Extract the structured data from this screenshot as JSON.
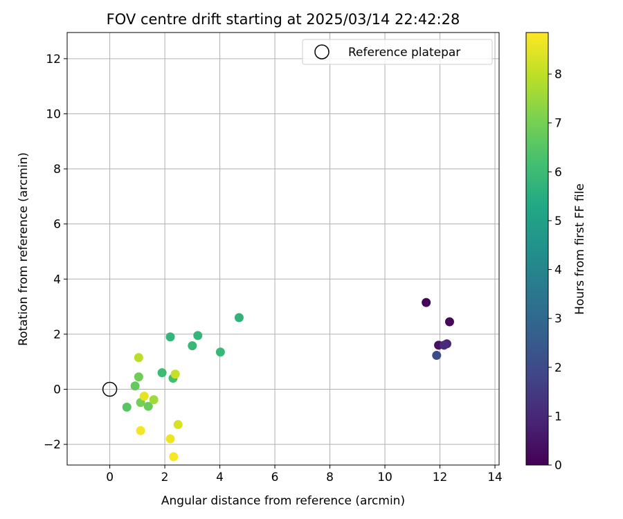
{
  "chart_data": {
    "type": "scatter",
    "title": "FOV centre drift starting at 2025/03/14 22:42:28",
    "xlabel": "Angular distance from reference (arcmin)",
    "ylabel": "Rotation from reference (arcmin)",
    "xlim": [
      -1.55,
      14.15
    ],
    "ylim": [
      -2.75,
      12.95
    ],
    "xticks": [
      0,
      2,
      4,
      6,
      8,
      10,
      12,
      14
    ],
    "yticks": [
      -2,
      0,
      2,
      4,
      6,
      8,
      10,
      12
    ],
    "grid": true,
    "legend": {
      "placement": "top-right",
      "entries": [
        "Reference platepar"
      ]
    },
    "colorbar": {
      "label": "Hours from first FF file",
      "range": [
        0,
        8.85
      ],
      "ticks": [
        0,
        1,
        2,
        3,
        4,
        5,
        6,
        7,
        8
      ],
      "colormap": "viridis"
    },
    "reference_point": {
      "x": 0,
      "y": 0,
      "label": "Reference platepar"
    },
    "points": [
      {
        "x": 11.5,
        "y": 3.15,
        "hours": 0.1
      },
      {
        "x": 12.35,
        "y": 2.45,
        "hours": 0.2
      },
      {
        "x": 11.95,
        "y": 1.6,
        "hours": 0.4
      },
      {
        "x": 12.25,
        "y": 1.65,
        "hours": 0.9
      },
      {
        "x": 12.15,
        "y": 1.6,
        "hours": 1.1
      },
      {
        "x": 11.88,
        "y": 1.23,
        "hours": 2.0
      },
      {
        "x": 4.7,
        "y": 2.6,
        "hours": 5.7
      },
      {
        "x": 3.2,
        "y": 1.95,
        "hours": 5.8
      },
      {
        "x": 2.2,
        "y": 1.9,
        "hours": 5.8
      },
      {
        "x": 3.0,
        "y": 1.58,
        "hours": 5.9
      },
      {
        "x": 4.02,
        "y": 1.35,
        "hours": 5.9
      },
      {
        "x": 1.9,
        "y": 0.6,
        "hours": 6.0
      },
      {
        "x": 2.3,
        "y": 0.4,
        "hours": 6.2
      },
      {
        "x": 0.62,
        "y": -0.65,
        "hours": 6.5
      },
      {
        "x": 0.92,
        "y": 0.12,
        "hours": 6.7
      },
      {
        "x": 1.4,
        "y": -0.62,
        "hours": 6.8
      },
      {
        "x": 1.05,
        "y": 0.45,
        "hours": 6.9
      },
      {
        "x": 1.12,
        "y": -0.48,
        "hours": 7.0
      },
      {
        "x": 1.6,
        "y": -0.38,
        "hours": 7.6
      },
      {
        "x": 1.05,
        "y": 1.15,
        "hours": 7.9
      },
      {
        "x": 2.38,
        "y": 0.55,
        "hours": 8.1
      },
      {
        "x": 2.48,
        "y": -1.28,
        "hours": 8.3
      },
      {
        "x": 1.25,
        "y": -0.25,
        "hours": 8.5
      },
      {
        "x": 2.2,
        "y": -1.8,
        "hours": 8.6
      },
      {
        "x": 1.12,
        "y": -1.5,
        "hours": 8.7
      },
      {
        "x": 2.32,
        "y": -2.45,
        "hours": 8.8
      }
    ]
  }
}
